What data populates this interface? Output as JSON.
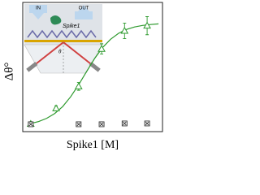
{
  "chart_data": {
    "type": "scatter",
    "x_label": "Spike1 [M]",
    "y_label": "Δθ°",
    "xlim": [
      0,
      7
    ],
    "ylim": [
      0,
      1
    ],
    "annotations": [
      "IN",
      "OUT",
      "Spike1",
      "θ"
    ],
    "series": [
      {
        "kind": "line",
        "color": "#2e9a2e",
        "x": [
          0.4,
          0.8,
          1.2,
          1.6,
          2.0,
          2.4,
          2.8,
          3.2,
          3.6,
          4.0,
          4.4,
          4.8,
          5.2,
          5.6,
          6.0,
          6.4,
          6.8
        ],
        "values": [
          0.063,
          0.078,
          0.103,
          0.14,
          0.194,
          0.27,
          0.363,
          0.466,
          0.566,
          0.651,
          0.715,
          0.761,
          0.791,
          0.81,
          0.822,
          0.829,
          0.834
        ]
      },
      {
        "kind": "triangle",
        "color": "#2e9a2e",
        "x": [
          0.4,
          1.67,
          2.8,
          3.95,
          5.1,
          6.23
        ],
        "values": [
          0.06,
          0.18,
          0.35,
          0.64,
          0.78,
          0.82
        ],
        "errors": [
          0.01,
          0.02,
          0.03,
          0.04,
          0.06,
          0.07
        ]
      },
      {
        "kind": "square",
        "color": "#333333",
        "x": [
          0.4,
          2.8,
          3.95,
          5.1,
          6.23
        ],
        "values": [
          0.057,
          0.057,
          0.057,
          0.063,
          0.063
        ]
      }
    ]
  }
}
